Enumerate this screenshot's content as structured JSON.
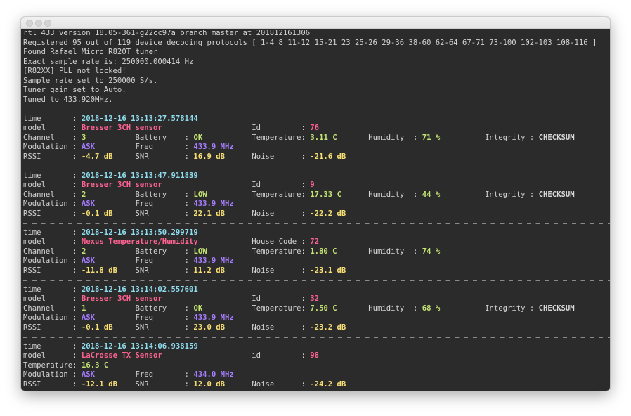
{
  "window": {
    "title": ""
  },
  "colors": {
    "background": "#2b2b2b",
    "text": "#d2d2d2",
    "time": "#8fdcee",
    "model": "#ff6393",
    "green": "#c3e373",
    "purple": "#a67dff",
    "yellow": "#f8df74"
  },
  "header_lines": [
    "rtl_433 version 18.05-361-g22cc97a branch master at 201812161306",
    "Registered 95 out of 119 device decoding protocols [ 1-4 8 11-12 15-21 23 25-26 29-36 38-60 62-64 67-71 73-100 102-103 108-116 ]",
    "Found Rafael Micro R820T tuner",
    "Exact sample rate is: 250000.000414 Hz",
    "[R82XX] PLL not locked!",
    "Sample rate set to 250000 S/s.",
    "Tuner gain set to Auto.",
    "Tuned to 433.920MHz."
  ],
  "events": [
    {
      "rows": [
        [
          {
            "label": "time",
            "value": "2018-12-16 13:13:27.578144",
            "color": "time"
          }
        ],
        [
          {
            "label": "model",
            "value": "Bresser 3CH sensor",
            "color": "model"
          },
          null,
          {
            "label": "Id",
            "value": "76",
            "color": "model"
          }
        ],
        [
          {
            "label": "Channel",
            "value": "3",
            "color": "green"
          },
          {
            "label": "Battery",
            "value": "OK",
            "color": "green"
          },
          {
            "label": "Temperature",
            "value": "3.11 C",
            "color": "green"
          },
          {
            "label": "Humidity",
            "value": "71 %",
            "color": "green"
          },
          {
            "label": "Integrity",
            "value": "CHECKSUM",
            "color": "white"
          }
        ],
        [
          {
            "label": "Modulation",
            "value": "ASK",
            "color": "purple"
          },
          {
            "label": "Freq",
            "value": "433.9 MHz",
            "color": "purple"
          }
        ],
        [
          {
            "label": "RSSI",
            "value": "-4.7 dB",
            "color": "yellow"
          },
          {
            "label": "SNR",
            "value": "16.9 dB",
            "color": "yellow"
          },
          {
            "label": "Noise",
            "value": "-21.6 dB",
            "color": "yellow"
          }
        ]
      ]
    },
    {
      "rows": [
        [
          {
            "label": "time",
            "value": "2018-12-16 13:13:47.911839",
            "color": "time"
          }
        ],
        [
          {
            "label": "model",
            "value": "Bresser 3CH sensor",
            "color": "model"
          },
          null,
          {
            "label": "Id",
            "value": "9",
            "color": "model"
          }
        ],
        [
          {
            "label": "Channel",
            "value": "2",
            "color": "green"
          },
          {
            "label": "Battery",
            "value": "LOW",
            "color": "green"
          },
          {
            "label": "Temperature",
            "value": "17.33 C",
            "color": "green"
          },
          {
            "label": "Humidity",
            "value": "44 %",
            "color": "green"
          },
          {
            "label": "Integrity",
            "value": "CHECKSUM",
            "color": "white"
          }
        ],
        [
          {
            "label": "Modulation",
            "value": "ASK",
            "color": "purple"
          },
          {
            "label": "Freq",
            "value": "433.9 MHz",
            "color": "purple"
          }
        ],
        [
          {
            "label": "RSSI",
            "value": "-0.1 dB",
            "color": "yellow"
          },
          {
            "label": "SNR",
            "value": "22.1 dB",
            "color": "yellow"
          },
          {
            "label": "Noise",
            "value": "-22.2 dB",
            "color": "yellow"
          }
        ]
      ]
    },
    {
      "rows": [
        [
          {
            "label": "time",
            "value": "2018-12-16 13:13:50.299719",
            "color": "time"
          }
        ],
        [
          {
            "label": "model",
            "value": "Nexus Temperature/Humidity",
            "color": "model"
          },
          null,
          {
            "label": "House Code",
            "value": "72",
            "color": "model"
          }
        ],
        [
          {
            "label": "Channel",
            "value": "2",
            "color": "green"
          },
          {
            "label": "Battery",
            "value": "LOW",
            "color": "green"
          },
          {
            "label": "Temperature",
            "value": "1.80 C",
            "color": "green"
          },
          {
            "label": "Humidity",
            "value": "74 %",
            "color": "green"
          }
        ],
        [
          {
            "label": "Modulation",
            "value": "ASK",
            "color": "purple"
          },
          {
            "label": "Freq",
            "value": "433.9 MHz",
            "color": "purple"
          }
        ],
        [
          {
            "label": "RSSI",
            "value": "-11.8 dB",
            "color": "yellow"
          },
          {
            "label": "SNR",
            "value": "11.2 dB",
            "color": "yellow"
          },
          {
            "label": "Noise",
            "value": "-23.1 dB",
            "color": "yellow"
          }
        ]
      ]
    },
    {
      "rows": [
        [
          {
            "label": "time",
            "value": "2018-12-16 13:14:02.557601",
            "color": "time"
          }
        ],
        [
          {
            "label": "model",
            "value": "Bresser 3CH sensor",
            "color": "model"
          },
          null,
          {
            "label": "Id",
            "value": "32",
            "color": "model"
          }
        ],
        [
          {
            "label": "Channel",
            "value": "1",
            "color": "green"
          },
          {
            "label": "Battery",
            "value": "OK",
            "color": "green"
          },
          {
            "label": "Temperature",
            "value": "7.50 C",
            "color": "green"
          },
          {
            "label": "Humidity",
            "value": "68 %",
            "color": "green"
          },
          {
            "label": "Integrity",
            "value": "CHECKSUM",
            "color": "white"
          }
        ],
        [
          {
            "label": "Modulation",
            "value": "ASK",
            "color": "purple"
          },
          {
            "label": "Freq",
            "value": "433.9 MHz",
            "color": "purple"
          }
        ],
        [
          {
            "label": "RSSI",
            "value": "-0.1 dB",
            "color": "yellow"
          },
          {
            "label": "SNR",
            "value": "23.0 dB",
            "color": "yellow"
          },
          {
            "label": "Noise",
            "value": "-23.2 dB",
            "color": "yellow"
          }
        ]
      ]
    },
    {
      "rows": [
        [
          {
            "label": "time",
            "value": "2018-12-16 13:14:06.938159",
            "color": "time"
          }
        ],
        [
          {
            "label": "model",
            "value": "LaCrosse TX Sensor",
            "color": "model"
          },
          null,
          {
            "label": "id",
            "value": "98",
            "color": "model"
          }
        ],
        [
          {
            "label": "Temperature",
            "value": "16.3 C",
            "color": "green"
          }
        ],
        [
          {
            "label": "Modulation",
            "value": "ASK",
            "color": "purple"
          },
          {
            "label": "Freq",
            "value": "434.0 MHz",
            "color": "purple"
          }
        ],
        [
          {
            "label": "RSSI",
            "value": "-12.1 dB",
            "color": "yellow"
          },
          {
            "label": "SNR",
            "value": "12.0 dB",
            "color": "yellow"
          },
          {
            "label": "Noise",
            "value": "-24.2 dB",
            "color": "yellow"
          }
        ]
      ]
    }
  ]
}
